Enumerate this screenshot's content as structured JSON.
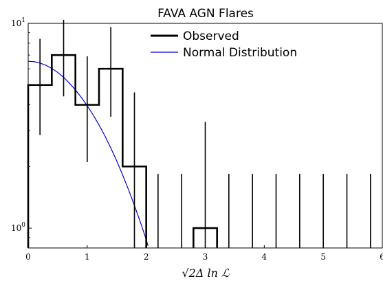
{
  "chart_data": {
    "type": "line",
    "title": "FAVA AGN Flares",
    "xlabel": "√2Δ ln ℒ",
    "ylabel": "",
    "xlim": [
      0,
      6
    ],
    "ylim": [
      0.8,
      10
    ],
    "yscale": "log",
    "x_ticks": [
      0,
      1,
      2,
      3,
      4,
      5,
      6
    ],
    "x_tick_labels": [
      "0",
      "1",
      "2",
      "3",
      "4",
      "5",
      "6"
    ],
    "y_tick_labels": [
      {
        "value": 10,
        "base": "10",
        "exp": "1"
      },
      {
        "value": 1,
        "base": "10",
        "exp": "0"
      }
    ],
    "legend": {
      "placement": "top-center"
    },
    "series": [
      {
        "name": "Observed",
        "kind": "step-histogram",
        "color": "#000000",
        "bin_edges": [
          0,
          0.4,
          0.8,
          1.2,
          1.6,
          2.0,
          2.4,
          2.8,
          3.2,
          3.6,
          4.0,
          4.4,
          4.8,
          5.2,
          5.6,
          6.0
        ],
        "counts": [
          5,
          7,
          4,
          6,
          2,
          0,
          0,
          1,
          0,
          0,
          0,
          0,
          0,
          0,
          0
        ],
        "error_bars": [
          {
            "x": 0.2,
            "low": 2.85,
            "high": 8.4
          },
          {
            "x": 0.6,
            "low": 4.4,
            "high": 10.4
          },
          {
            "x": 1.0,
            "low": 2.1,
            "high": 6.9
          },
          {
            "x": 1.4,
            "low": 3.5,
            "high": 9.6
          },
          {
            "x": 1.8,
            "low": 0.8,
            "high": 4.6
          },
          {
            "x": 2.2,
            "low": 0.8,
            "high": 1.84
          },
          {
            "x": 2.6,
            "low": 0.8,
            "high": 1.84
          },
          {
            "x": 3.0,
            "low": 0.8,
            "high": 3.3
          },
          {
            "x": 3.4,
            "low": 0.8,
            "high": 1.84
          },
          {
            "x": 3.8,
            "low": 0.8,
            "high": 1.84
          },
          {
            "x": 4.2,
            "low": 0.8,
            "high": 1.84
          },
          {
            "x": 4.6,
            "low": 0.8,
            "high": 1.84
          },
          {
            "x": 5.0,
            "low": 0.8,
            "high": 1.84
          },
          {
            "x": 5.4,
            "low": 0.8,
            "high": 1.84
          },
          {
            "x": 5.8,
            "low": 0.8,
            "high": 1.84
          }
        ]
      },
      {
        "name": "Normal Distribution",
        "kind": "curve",
        "color": "#0000cc",
        "x": [
          0,
          0.1,
          0.2,
          0.3,
          0.4,
          0.5,
          0.6,
          0.7,
          0.8,
          0.9,
          1.0,
          1.1,
          1.2,
          1.3,
          1.4,
          1.5,
          1.6,
          1.7,
          1.8,
          1.9,
          2.0,
          2.03
        ],
        "y": [
          6.53,
          6.5,
          6.4,
          6.24,
          6.03,
          5.76,
          5.45,
          5.1,
          4.73,
          4.35,
          3.96,
          3.57,
          3.19,
          2.82,
          2.46,
          2.13,
          1.82,
          1.54,
          1.29,
          1.07,
          0.88,
          0.82
        ]
      }
    ]
  }
}
